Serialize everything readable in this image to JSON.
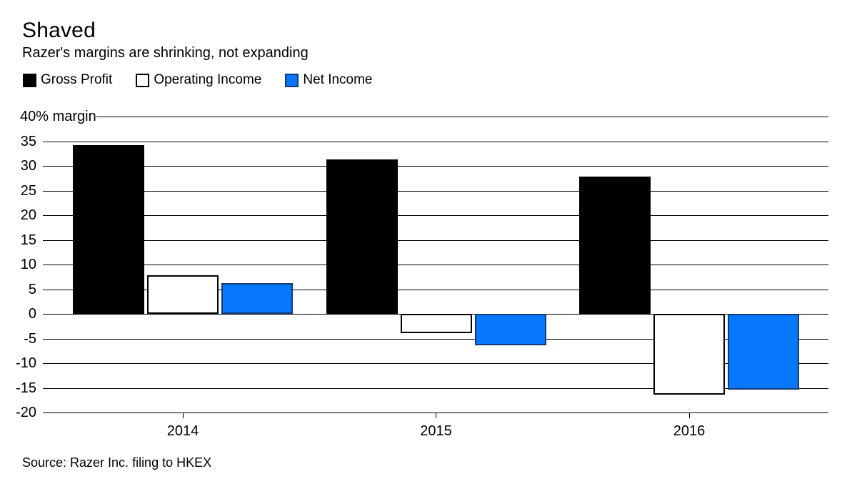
{
  "header": {
    "title": "Shaved",
    "subtitle": "Razer's margins are shrinking, not expanding"
  },
  "chart_data": {
    "type": "bar",
    "title": "Shaved",
    "subtitle": "Razer's margins are shrinking, not expanding",
    "categories": [
      "2014",
      "2015",
      "2016"
    ],
    "series": [
      {
        "name": "Gross Profit",
        "values": [
          34.2,
          31.3,
          27.8
        ],
        "fill": "#000000",
        "border": "#000000"
      },
      {
        "name": "Operating Income",
        "values": [
          7.9,
          -3.9,
          -16.4
        ],
        "fill": "#ffffff",
        "border": "#000000"
      },
      {
        "name": "Net Income",
        "values": [
          6.3,
          -6.4,
          -15.3
        ],
        "fill": "#0777fb",
        "border": "#123c77"
      }
    ],
    "xlabel": "",
    "ylabel": "% margin",
    "ylim": [
      -20,
      40
    ],
    "y_tick_labels": [
      "40% margin",
      "35",
      "30",
      "25",
      "20",
      "15",
      "10",
      "5",
      "0",
      "-5",
      "-10",
      "-15",
      "-20"
    ],
    "grid": "horizontal",
    "legend_position": "top-left"
  },
  "source": {
    "text": "Source: Razer Inc. filing to HKEX"
  }
}
